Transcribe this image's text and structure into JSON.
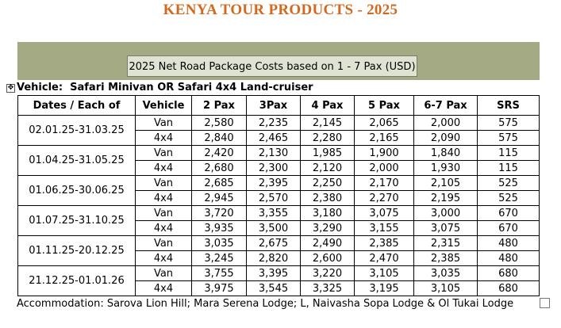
{
  "title": "KENYA TOUR PRODUCTS - 2025",
  "banner": "2025 Net Road Package Costs based on 1 - 7 Pax (USD)",
  "vehicle_label": "Vehicle:",
  "vehicle_value": "Safari Minivan OR Safari 4x4 Land-cruiser",
  "headers": [
    "Dates / Each of",
    "Vehicle",
    "2 Pax",
    "3Pax",
    "4 Pax",
    "5 Pax",
    "6-7 Pax",
    "SRS"
  ],
  "rows": [
    {
      "dates": "02.01.25-31.03.25",
      "van": [
        "Van",
        "2,580",
        "2,235",
        "2,145",
        "2,065",
        "2,000",
        "575"
      ],
      "x4": [
        "4x4",
        "2,840",
        "2,465",
        "2,280",
        "2,165",
        "2,090",
        "575"
      ]
    },
    {
      "dates": "01.04.25-31.05.25",
      "van": [
        "Van",
        "2,420",
        "2,130",
        "1,985",
        "1,900",
        "1,840",
        "115"
      ],
      "x4": [
        "4x4",
        "2,680",
        "2,300",
        "2,120",
        "2,000",
        "1,930",
        "115"
      ]
    },
    {
      "dates": "01.06.25-30.06.25",
      "van": [
        "Van",
        "2,685",
        "2,395",
        "2,250",
        "2,170",
        "2,105",
        "525"
      ],
      "x4": [
        "4x4",
        "2,945",
        "2,570",
        "2,380",
        "2,270",
        "2,195",
        "525"
      ]
    },
    {
      "dates": "01.07.25-31.10.25",
      "van": [
        "Van",
        "3,720",
        "3,355",
        "3,180",
        "3,075",
        "3,000",
        "670"
      ],
      "x4": [
        "4x4",
        "3,935",
        "3,500",
        "3,290",
        "3,155",
        "3,075",
        "670"
      ]
    },
    {
      "dates": "01.11.25-20.12.25",
      "van": [
        "Van",
        "3,035",
        "2,675",
        "2,490",
        "2,385",
        "2,315",
        "480"
      ],
      "x4": [
        "4x4",
        "3,245",
        "2,820",
        "2,600",
        "2,470",
        "2,385",
        "480"
      ]
    },
    {
      "dates": "21.12.25-01.01.26",
      "van": [
        "Van",
        "3,755",
        "3,395",
        "3,220",
        "3,105",
        "3,035",
        "680"
      ],
      "x4": [
        "4x4",
        "3,975",
        "3,545",
        "3,325",
        "3,195",
        "3,105",
        "680"
      ]
    }
  ],
  "footer": "Accommodation: Sarova Lion Hill; Mara Serena Lodge; L, Naivasha Sopa Lodge & Ol Tukai Lodge",
  "colors": {
    "title": "#d2691e",
    "band": "#a3aa84",
    "banner_box": "#dfe3d2"
  },
  "icons": {
    "table_move_handle": "move-cross-icon"
  }
}
